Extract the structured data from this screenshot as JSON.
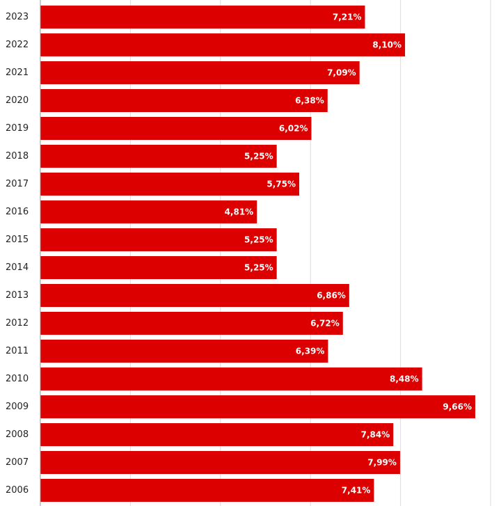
{
  "chart_data": {
    "type": "bar",
    "orientation": "horizontal",
    "categories": [
      "2023",
      "2022",
      "2021",
      "2020",
      "2019",
      "2018",
      "2017",
      "2016",
      "2015",
      "2014",
      "2013",
      "2012",
      "2011",
      "2010",
      "2009",
      "2008",
      "2007",
      "2006"
    ],
    "values": [
      7.21,
      8.1,
      7.09,
      6.38,
      6.02,
      5.25,
      5.75,
      4.81,
      5.25,
      5.25,
      6.86,
      6.72,
      6.39,
      8.48,
      9.66,
      7.84,
      7.99,
      7.41
    ],
    "data_labels": [
      "7,21%",
      "8,10%",
      "7,09%",
      "6,38%",
      "6,02%",
      "5,25%",
      "5,75%",
      "4,81%",
      "5,25%",
      "5,25%",
      "6,86%",
      "6,72%",
      "6,39%",
      "8,48%",
      "9,66%",
      "7,84%",
      "7,99%",
      "7,41%"
    ],
    "title": "",
    "xlabel": "",
    "ylabel": "",
    "xlim": [
      0,
      10
    ],
    "grid": true,
    "bar_color": "#dd0000",
    "label_color": "#ffffff"
  }
}
